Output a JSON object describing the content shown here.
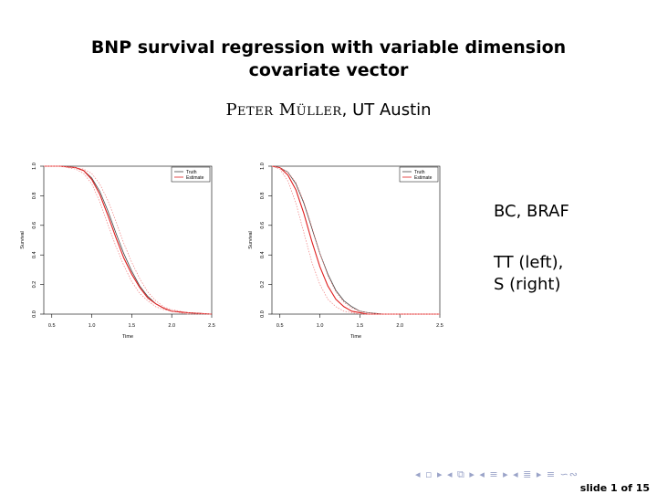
{
  "slide": {
    "title_line1": "BNP survival regression with variable dimension",
    "title_line2": "covariate vector",
    "author_name": "Peter Müller",
    "author_affil": ", UT Austin",
    "side_line1": "BC, BRAF",
    "side_line2": "TT (left),",
    "side_line3": "S (right)",
    "nav_symbols": "◂ ▫ ▸ ◂ ⧉ ▸ ◂ ≡ ▸ ◂ ≣ ▸   ≡   ∽∾",
    "slide_number": "slide 1 of 15"
  },
  "colors": {
    "truth": "#444444",
    "estimate": "#e02020",
    "ci": "#f08080"
  },
  "chart_data": [
    {
      "type": "line",
      "title": "",
      "xlabel": "Time",
      "ylabel": "Survival",
      "xlim": [
        0.4,
        2.5
      ],
      "ylim": [
        0,
        1
      ],
      "xticks": [
        0.5,
        1.0,
        1.5,
        2.0,
        2.5
      ],
      "xtick_labels": [
        "0.5",
        "1.0",
        "1.5",
        "2.0",
        "2.5"
      ],
      "yticks": [
        0,
        0.2,
        0.4,
        0.6,
        0.8,
        1.0
      ],
      "ytick_labels": [
        "0.0",
        "0.2",
        "0.4",
        "0.6",
        "0.8",
        "1.0"
      ],
      "legend_position": "top-right",
      "legend": [
        "Truth",
        "Estimate"
      ],
      "x": [
        0.4,
        0.6,
        0.8,
        0.9,
        1.0,
        1.1,
        1.2,
        1.3,
        1.4,
        1.5,
        1.6,
        1.7,
        1.8,
        1.9,
        2.0,
        2.2,
        2.5
      ],
      "series": [
        {
          "name": "Truth",
          "style": "truth",
          "values": [
            1.0,
            1.0,
            0.99,
            0.97,
            0.92,
            0.83,
            0.7,
            0.55,
            0.41,
            0.29,
            0.19,
            0.12,
            0.07,
            0.04,
            0.02,
            0.01,
            0.0
          ]
        },
        {
          "name": "Estimate",
          "style": "estimate",
          "values": [
            1.0,
            1.0,
            0.99,
            0.97,
            0.91,
            0.81,
            0.67,
            0.52,
            0.38,
            0.27,
            0.18,
            0.11,
            0.07,
            0.04,
            0.02,
            0.01,
            0.0
          ]
        },
        {
          "style": "ci",
          "values": [
            1.0,
            1.0,
            0.99,
            0.98,
            0.95,
            0.88,
            0.77,
            0.63,
            0.48,
            0.35,
            0.24,
            0.15,
            0.09,
            0.05,
            0.03,
            0.01,
            0.0
          ]
        },
        {
          "style": "ci",
          "values": [
            1.0,
            1.0,
            0.98,
            0.95,
            0.88,
            0.76,
            0.61,
            0.46,
            0.33,
            0.22,
            0.14,
            0.09,
            0.05,
            0.03,
            0.02,
            0.0,
            0.0
          ]
        }
      ]
    },
    {
      "type": "line",
      "title": "",
      "xlabel": "Time",
      "ylabel": "Survival",
      "xlim": [
        0.4,
        2.5
      ],
      "ylim": [
        0,
        1
      ],
      "xticks": [
        0.5,
        1.0,
        1.5,
        2.0,
        2.5
      ],
      "xtick_labels": [
        "0.5",
        "1.0",
        "1.5",
        "2.0",
        "2.5"
      ],
      "yticks": [
        0,
        0.2,
        0.4,
        0.6,
        0.8,
        1.0
      ],
      "ytick_labels": [
        "0.0",
        "0.2",
        "0.4",
        "0.6",
        "0.8",
        "1.0"
      ],
      "legend_position": "top-right",
      "legend": [
        "Truth",
        "Estimate"
      ],
      "x": [
        0.4,
        0.5,
        0.6,
        0.7,
        0.8,
        0.9,
        1.0,
        1.1,
        1.2,
        1.3,
        1.4,
        1.5,
        1.6,
        1.8,
        2.0,
        2.5
      ],
      "series": [
        {
          "name": "Truth",
          "style": "truth",
          "values": [
            1.0,
            0.99,
            0.96,
            0.88,
            0.75,
            0.58,
            0.41,
            0.27,
            0.16,
            0.09,
            0.05,
            0.02,
            0.01,
            0.0,
            0.0,
            0.0
          ]
        },
        {
          "name": "Estimate",
          "style": "estimate",
          "values": [
            1.0,
            0.99,
            0.94,
            0.84,
            0.68,
            0.49,
            0.32,
            0.19,
            0.1,
            0.05,
            0.02,
            0.01,
            0.0,
            0.0,
            0.0,
            0.0
          ]
        },
        {
          "style": "ci",
          "values": [
            1.0,
            0.99,
            0.96,
            0.89,
            0.76,
            0.59,
            0.41,
            0.26,
            0.15,
            0.08,
            0.04,
            0.02,
            0.01,
            0.0,
            0.0,
            0.0
          ]
        },
        {
          "style": "ci",
          "values": [
            1.0,
            0.98,
            0.9,
            0.75,
            0.55,
            0.35,
            0.2,
            0.1,
            0.05,
            0.02,
            0.01,
            0.0,
            0.0,
            0.0,
            0.0,
            0.0
          ]
        }
      ]
    }
  ]
}
